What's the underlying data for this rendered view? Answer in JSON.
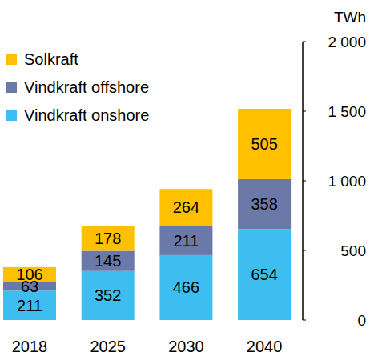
{
  "chart_data": {
    "type": "bar",
    "stacked": true,
    "data_labels": true,
    "legend": "top-left",
    "grid": false,
    "y_label": "TWh",
    "categories": [
      "2018",
      "2025",
      "2030",
      "2040"
    ],
    "series": [
      {
        "name": "Vindkraft onshore",
        "color": "#3ebef0",
        "values": [
          211,
          352,
          466,
          654
        ]
      },
      {
        "name": "Vindkraft offshore",
        "color": "#6a79a8",
        "values": [
          63,
          145,
          211,
          358
        ]
      },
      {
        "name": "Solkraft",
        "color": "#ffc000",
        "values": [
          106,
          178,
          264,
          505
        ]
      }
    ],
    "ylim": [
      0,
      2000
    ],
    "yticks": [
      0,
      500,
      {
        "value": 1000,
        "label": "1 000"
      },
      {
        "value": 1500,
        "label": "1 500"
      },
      {
        "value": 2000,
        "label": "2 000"
      }
    ]
  }
}
